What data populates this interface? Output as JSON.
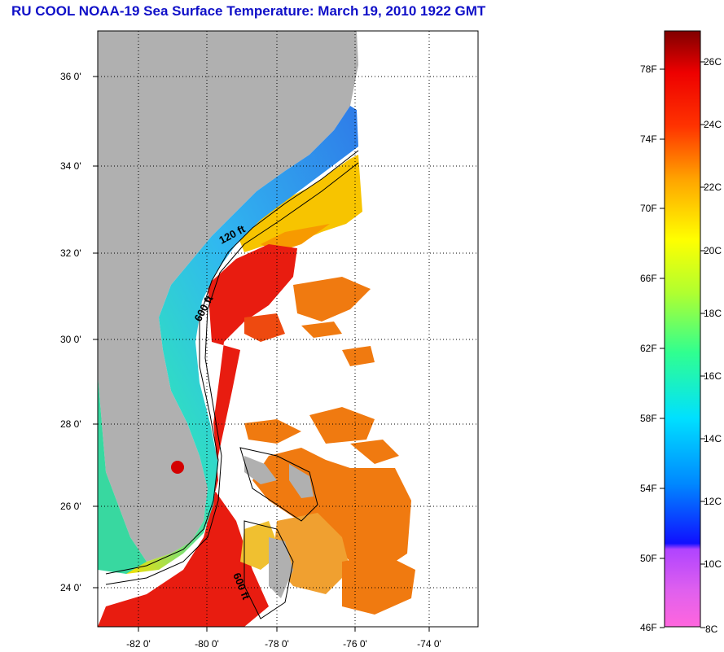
{
  "title": "RU COOL  NOAA-19  Sea Surface Temperature:  March 19, 2010 1922 GMT",
  "map": {
    "latitude_labels": [
      "36 0'",
      "34 0'",
      "32 0'",
      "30 0'",
      "28 0'",
      "26 0'",
      "24 0'"
    ],
    "longitude_labels": [
      "-82 0'",
      "-80 0'",
      "-78 0'",
      "-76 0'",
      "-74 0'"
    ],
    "contour_labels": [
      "120 ft",
      "600 ft",
      "600 ft"
    ],
    "colors": {
      "land": "#b0b0b0",
      "cloud": "#ffffff",
      "cold_water": "#2f7be8",
      "warm_water": "#ee2211"
    }
  },
  "colorbar": {
    "fahrenheit_labels": [
      "78F",
      "74F",
      "70F",
      "66F",
      "62F",
      "58F",
      "54F",
      "50F",
      "46F"
    ],
    "celsius_labels": [
      "26C",
      "24C",
      "22C",
      "20C",
      "18C",
      "16C",
      "14C",
      "12C",
      "10C",
      "8C"
    ],
    "range_celsius": [
      8,
      27
    ],
    "gradient_colors": [
      "#ff66dd",
      "#b044ff",
      "#1010ff",
      "#0088ff",
      "#00e0ff",
      "#30ff90",
      "#b0ff30",
      "#ffff00",
      "#ffa500",
      "#ff3300",
      "#ee0000",
      "#800000"
    ]
  }
}
